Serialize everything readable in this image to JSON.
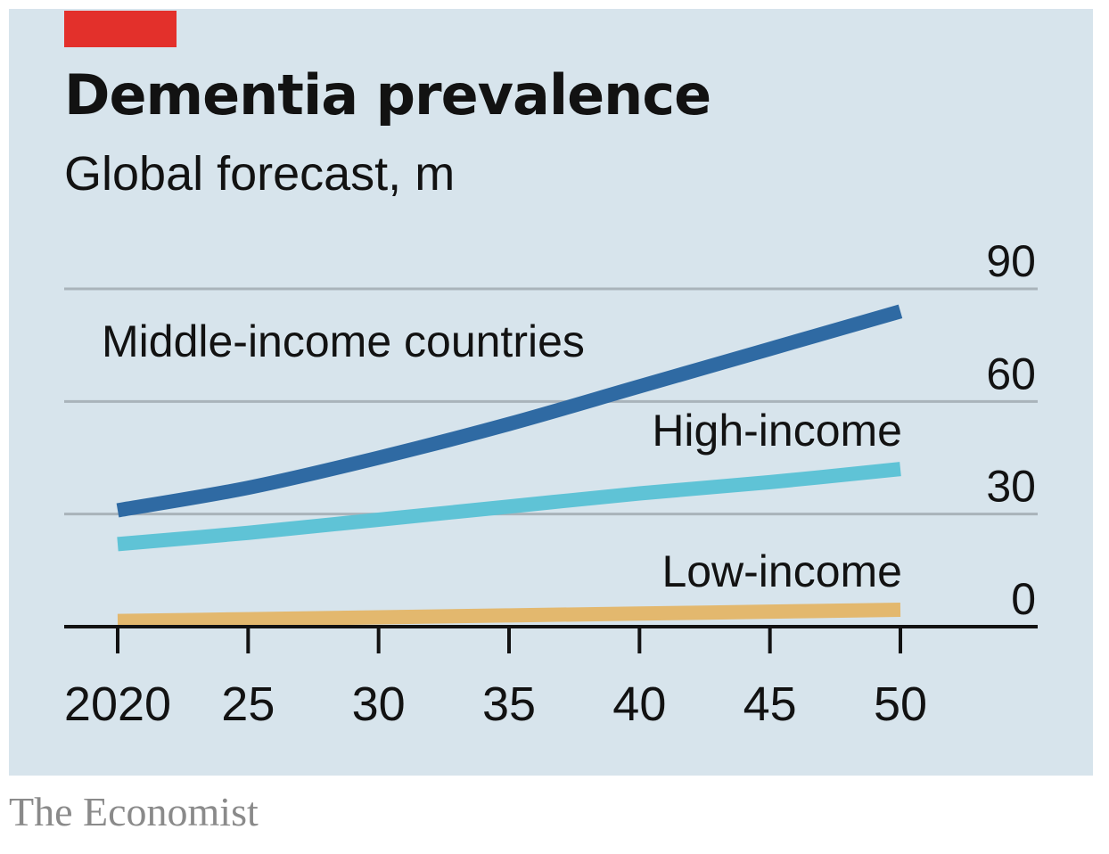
{
  "header": {
    "title": "Dementia prevalence",
    "subtitle": "Global forecast, m"
  },
  "source": "The Economist",
  "colors": {
    "background": "#d7e4ec",
    "accent": "#e3302b",
    "middle": "#2f6aa3",
    "high": "#5fc3d6",
    "low": "#e3b86e"
  },
  "chart_data": {
    "type": "line",
    "title": "Dementia prevalence",
    "subtitle": "Global forecast, m",
    "x": [
      2020,
      2025,
      2030,
      2035,
      2040,
      2045,
      2050
    ],
    "x_tick_labels": [
      "2020",
      "25",
      "30",
      "35",
      "40",
      "45",
      "50"
    ],
    "xlim": [
      2020,
      2050
    ],
    "ylim": [
      0,
      90
    ],
    "y_ticks": [
      0,
      30,
      60,
      90
    ],
    "y_axis_side": "right",
    "grid": true,
    "series": [
      {
        "name": "Middle-income countries",
        "values": [
          31,
          37,
          45,
          54,
          64,
          74,
          84
        ]
      },
      {
        "name": "High-income",
        "values": [
          22,
          25,
          28.5,
          32,
          35.5,
          38.5,
          42
        ]
      },
      {
        "name": "Low-income",
        "values": [
          1.5,
          2,
          2.5,
          3,
          3.5,
          4,
          4.5
        ]
      }
    ]
  }
}
